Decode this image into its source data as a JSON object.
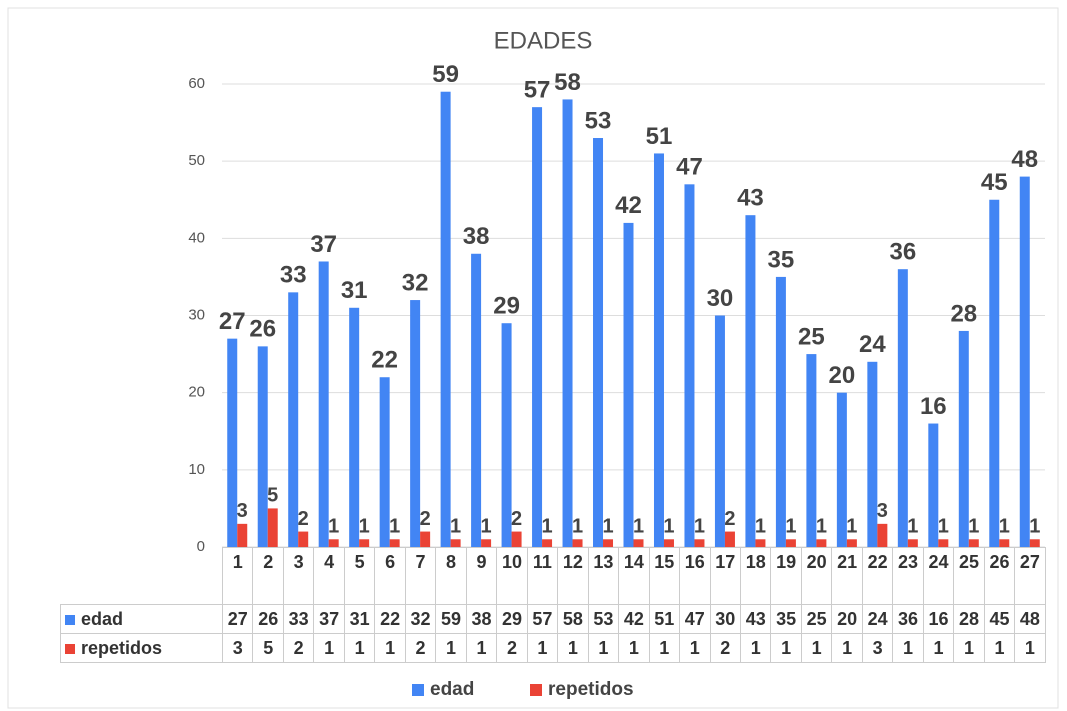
{
  "chart_data": {
    "type": "bar",
    "title": "EDADES",
    "categories": [
      "1",
      "2",
      "3",
      "4",
      "5",
      "6",
      "7",
      "8",
      "9",
      "10",
      "11",
      "12",
      "13",
      "14",
      "15",
      "16",
      "17",
      "18",
      "19",
      "20",
      "21",
      "22",
      "23",
      "24",
      "25",
      "26",
      "27"
    ],
    "series": [
      {
        "name": "edad",
        "color": "#4285f4",
        "values": [
          27,
          26,
          33,
          37,
          31,
          22,
          32,
          59,
          38,
          29,
          57,
          58,
          53,
          42,
          51,
          47,
          30,
          43,
          35,
          25,
          20,
          24,
          36,
          16,
          28,
          45,
          48
        ]
      },
      {
        "name": "repetidos",
        "color": "#ea4335",
        "values": [
          3,
          5,
          2,
          1,
          1,
          1,
          2,
          1,
          1,
          2,
          1,
          1,
          1,
          1,
          1,
          1,
          2,
          1,
          1,
          1,
          1,
          3,
          1,
          1,
          1,
          1,
          1
        ]
      }
    ],
    "ylim": [
      0,
      60
    ],
    "yticks": [
      0,
      10,
      20,
      30,
      40,
      50,
      60
    ],
    "grid": true,
    "legend": "bottom"
  }
}
